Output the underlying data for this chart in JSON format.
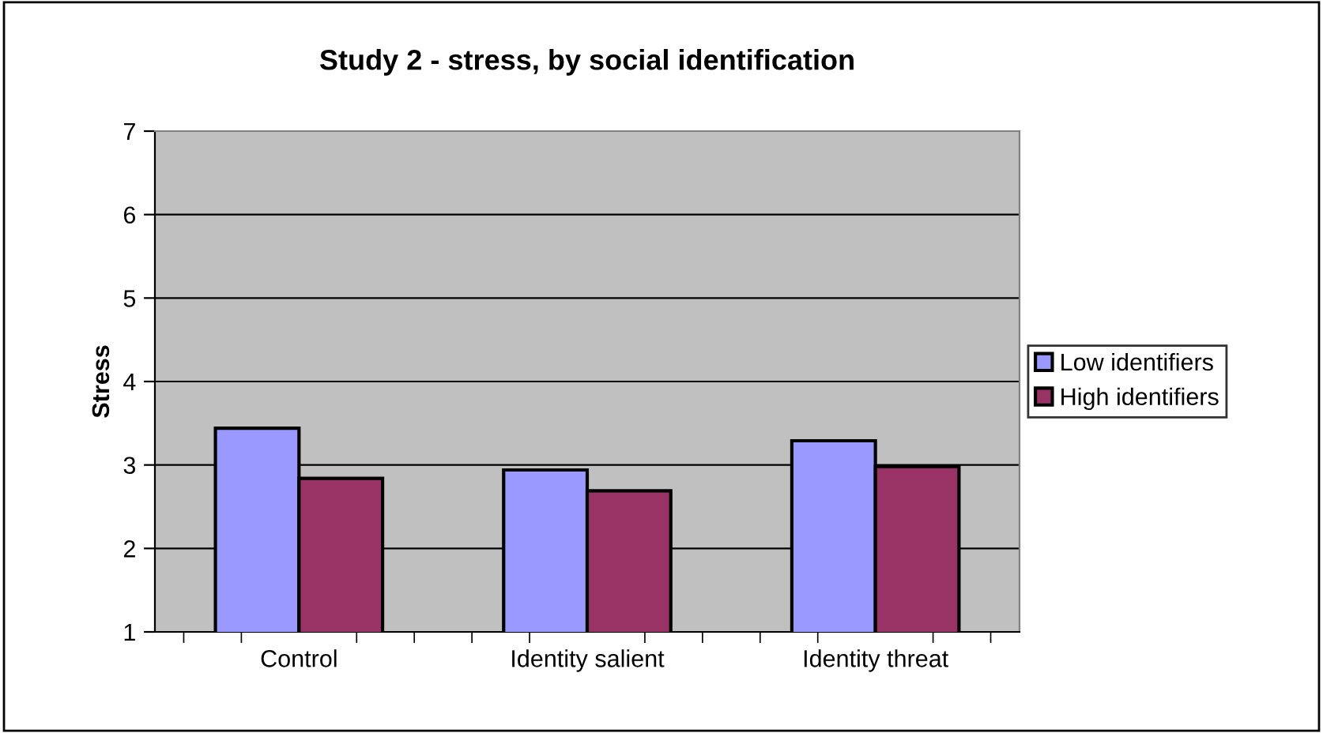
{
  "chart_data": {
    "type": "bar",
    "title": "Study 2 - stress, by social identification",
    "ylabel": "Stress",
    "categories": [
      "Control",
      "Identity salient",
      "Identity threat"
    ],
    "series": [
      {
        "name": "Low identifiers",
        "color": "#9999ff",
        "values": [
          3.44,
          2.94,
          3.29
        ]
      },
      {
        "name": "High identifiers",
        "color": "#993366",
        "values": [
          2.84,
          2.69,
          2.98
        ]
      }
    ],
    "ylim": [
      1,
      7
    ],
    "yticks": [
      1,
      2,
      3,
      4,
      5,
      6,
      7
    ],
    "grid": "y",
    "legend": "right"
  }
}
